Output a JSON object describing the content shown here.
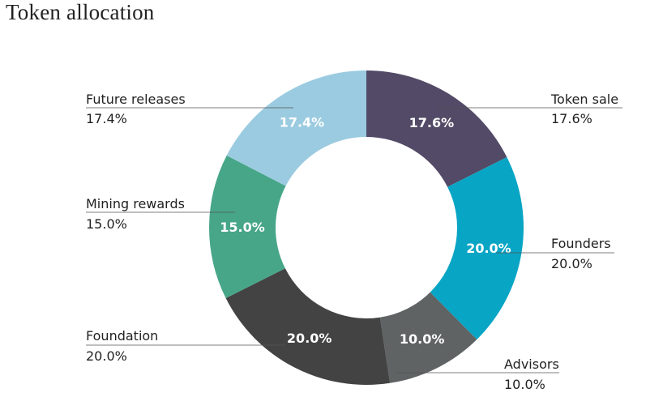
{
  "title": "Token allocation",
  "chart_data": {
    "type": "pie",
    "title": "Token allocation",
    "donut": true,
    "slices": [
      {
        "name": "Token sale",
        "value": 17.6,
        "label": "17.6%",
        "color": "#524a66"
      },
      {
        "name": "Founders",
        "value": 20.0,
        "label": "20.0%",
        "color": "#09a5c5"
      },
      {
        "name": "Advisors",
        "value": 10.0,
        "label": "10.0%",
        "color": "#5f6363"
      },
      {
        "name": "Foundation",
        "value": 20.0,
        "label": "20.0%",
        "color": "#434344"
      },
      {
        "name": "Mining rewards",
        "value": 15.0,
        "label": "15.0%",
        "color": "#48a688"
      },
      {
        "name": "Future releases",
        "value": 17.4,
        "label": "17.4%",
        "color": "#9bcbe0"
      }
    ]
  }
}
